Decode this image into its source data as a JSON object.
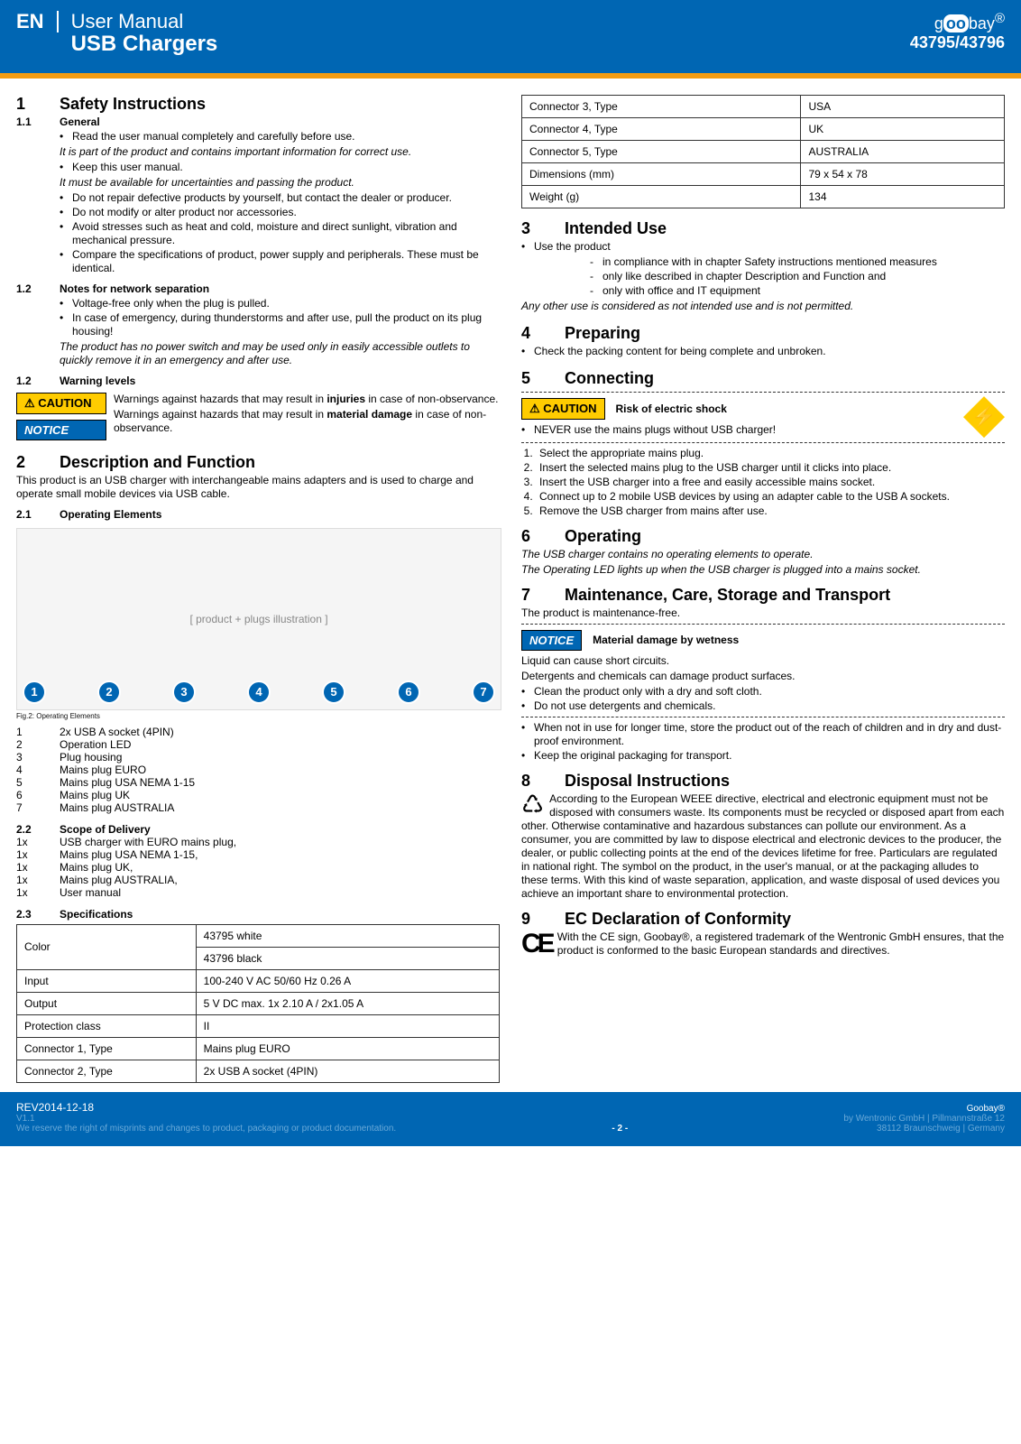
{
  "header": {
    "lang": "EN",
    "title1": "User Manual",
    "title2": "USB Chargers",
    "brand_pre": "g",
    "brand_mid": "oo",
    "brand_post": "bay",
    "brand_sup": "®",
    "partnum": "43795/43796"
  },
  "s1": {
    "num": "1",
    "title": "Safety Instructions",
    "s11_num": "1.1",
    "s11_title": "General",
    "g1": "Read the user manual completely and carefully before use.",
    "g1_note": "It is part of the product and contains important information for correct use.",
    "g2": "Keep this user manual.",
    "g2_note": "It must be available for uncertainties and passing the product.",
    "g3": "Do not repair defective products by yourself, but contact the dealer or producer.",
    "g4": "Do not modify or alter product nor accessories.",
    "g5": "Avoid stresses such as heat and cold, moisture and direct sunlight, vibration and mechanical pressure.",
    "g6": "Compare the specifications of product, power supply and peripherals. These must be identical.",
    "s12a_num": "1.2",
    "s12a_title": "Notes for network separation",
    "n1": "Voltage-free only when the plug is pulled.",
    "n2": "In case of emergency, during thunderstorms and after use, pull the product on its plug housing!",
    "n_note": "The product has no power switch and may be used only in easily accessible outlets to quickly remove it in an emergency and after use.",
    "s12b_num": "1.2",
    "s12b_title": "Warning levels",
    "caution_label": "CAUTION",
    "notice_label": "NOTICE",
    "w1a": "Warnings against hazards that may result in ",
    "w1b": "injuries",
    "w1c": " in case of non-observance.",
    "w2a": "Warnings against hazards that may result in ",
    "w2b": "material damage",
    "w2c": " in case of non-observance."
  },
  "s2": {
    "num": "2",
    "title": "Description and Function",
    "intro": "This product is an USB charger with interchangeable mains adapters and is used to charge and operate small mobile devices via USB cable.",
    "s21_num": "2.1",
    "s21_title": "Operating Elements",
    "fig_caption": "Fig.2: Operating Elements",
    "callouts": [
      "1",
      "2",
      "3",
      "4",
      "5",
      "6",
      "7"
    ],
    "legend": [
      {
        "k": "1",
        "v": "2x USB A socket (4PIN)"
      },
      {
        "k": "2",
        "v": "Operation LED"
      },
      {
        "k": "3",
        "v": "Plug housing"
      },
      {
        "k": "4",
        "v": "Mains plug EURO"
      },
      {
        "k": "5",
        "v": "Mains plug USA NEMA 1-15"
      },
      {
        "k": "6",
        "v": "Mains plug UK"
      },
      {
        "k": "7",
        "v": "Mains plug AUSTRALIA"
      }
    ],
    "s22_num": "2.2",
    "s22_title": "Scope of Delivery",
    "scope": [
      {
        "k": "1x",
        "v": "USB charger with EURO mains plug,"
      },
      {
        "k": "1x",
        "v": "Mains plug USA NEMA 1-15,"
      },
      {
        "k": "1x",
        "v": "Mains plug UK,"
      },
      {
        "k": "1x",
        "v": "Mains plug AUSTRALIA,"
      },
      {
        "k": "1x",
        "v": "User manual"
      }
    ],
    "s23_num": "2.3",
    "s23_title": "Specifications",
    "spec_left": [
      {
        "k": "Color",
        "v": "43795 white"
      },
      {
        "k": "",
        "v": "43796 black"
      },
      {
        "k": "Input",
        "v": "100-240 V AC 50/60 Hz 0.26 A"
      },
      {
        "k": "Output",
        "v": "5 V DC max. 1x 2.10 A / 2x1.05 A"
      },
      {
        "k": "Protection class",
        "v": "II"
      },
      {
        "k": "Connector 1, Type",
        "v": "Mains plug EURO"
      },
      {
        "k": "Connector 2, Type",
        "v": "2x USB A socket (4PIN)"
      }
    ],
    "spec_right": [
      {
        "k": "Connector 3, Type",
        "v": "USA"
      },
      {
        "k": "Connector 4, Type",
        "v": "UK"
      },
      {
        "k": "Connector 5, Type",
        "v": "AUSTRALIA"
      },
      {
        "k": "Dimensions (mm)",
        "v": "79 x 54 x 78"
      },
      {
        "k": "Weight (g)",
        "v": "134"
      }
    ]
  },
  "s3": {
    "num": "3",
    "title": "Intended Use",
    "lead": "Use the product",
    "d1": "in compliance with in chapter Safety instructions mentioned measures",
    "d2": "only like described in chapter Description and Function and",
    "d3": "only with office and IT equipment",
    "note": "Any other use is considered as not intended use and is not permitted."
  },
  "s4": {
    "num": "4",
    "title": "Preparing",
    "b1": "Check the packing content for being complete and unbroken."
  },
  "s5": {
    "num": "5",
    "title": "Connecting",
    "caution_label": "CAUTION",
    "risk": "Risk of electric shock",
    "never": "NEVER use the mains plugs without USB charger!",
    "steps": [
      "Select the appropriate mains plug.",
      "Insert the selected mains plug to the USB charger until it clicks into place.",
      "Insert the USB charger into a free and easily accessible mains socket.",
      "Connect up to 2 mobile USB devices by using an adapter cable to the USB A sockets.",
      "Remove the USB charger from mains after use."
    ]
  },
  "s6": {
    "num": "6",
    "title": "Operating",
    "l1": "The USB charger contains no operating elements to operate.",
    "l2": "The Operating LED lights up when the USB charger is plugged into a mains socket."
  },
  "s7": {
    "num": "7",
    "title": "Maintenance, Care, Storage and Transport",
    "intro": "The product is maintenance-free.",
    "notice_label": "NOTICE",
    "notice_title": "Material damage by wetness",
    "l1": "Liquid can cause short circuits.",
    "l2": "Detergents and chemicals can damage product surfaces.",
    "b1": "Clean the product only with a dry and soft cloth.",
    "b2": "Do not use detergents and chemicals.",
    "b3": "When not in use for longer time, store the product out of the reach of children and in dry and dust-proof environment.",
    "b4": "Keep the original packaging for transport."
  },
  "s8": {
    "num": "8",
    "title": "Disposal Instructions",
    "text": "According to the European WEEE directive, electrical and electronic equipment must not be disposed with consumers waste. Its components must be recycled or disposed apart from each other. Otherwise contaminative and hazardous substances can pollute our environment. As a consumer, you are committed by law to dispose electrical and electronic devices to the producer, the dealer, or public collecting points at the end of the devices lifetime for free. Particulars are regulated in national right. The symbol on the product, in the user's manual, or at the packaging alludes to these terms. With this kind of waste separation, application, and waste disposal of used devices you achieve an important share to environmental protection."
  },
  "s9": {
    "num": "9",
    "title": "EC Declaration of Conformity",
    "text": "With the CE sign, Goobay®, a registered trademark of the Wentronic GmbH ensures, that the product is conformed to the basic European standards and directives."
  },
  "footer": {
    "rev": "REV2014-12-18",
    "ver": "V1.1",
    "disclaimer": "We reserve the right of misprints and changes to product, packaging or product documentation.",
    "page": "- 2 -",
    "brand": "Goobay®",
    "addr1": "by Wentronic GmbH | Pillmannstraße 12",
    "addr2": "38112 Braunschweig | Germany"
  }
}
